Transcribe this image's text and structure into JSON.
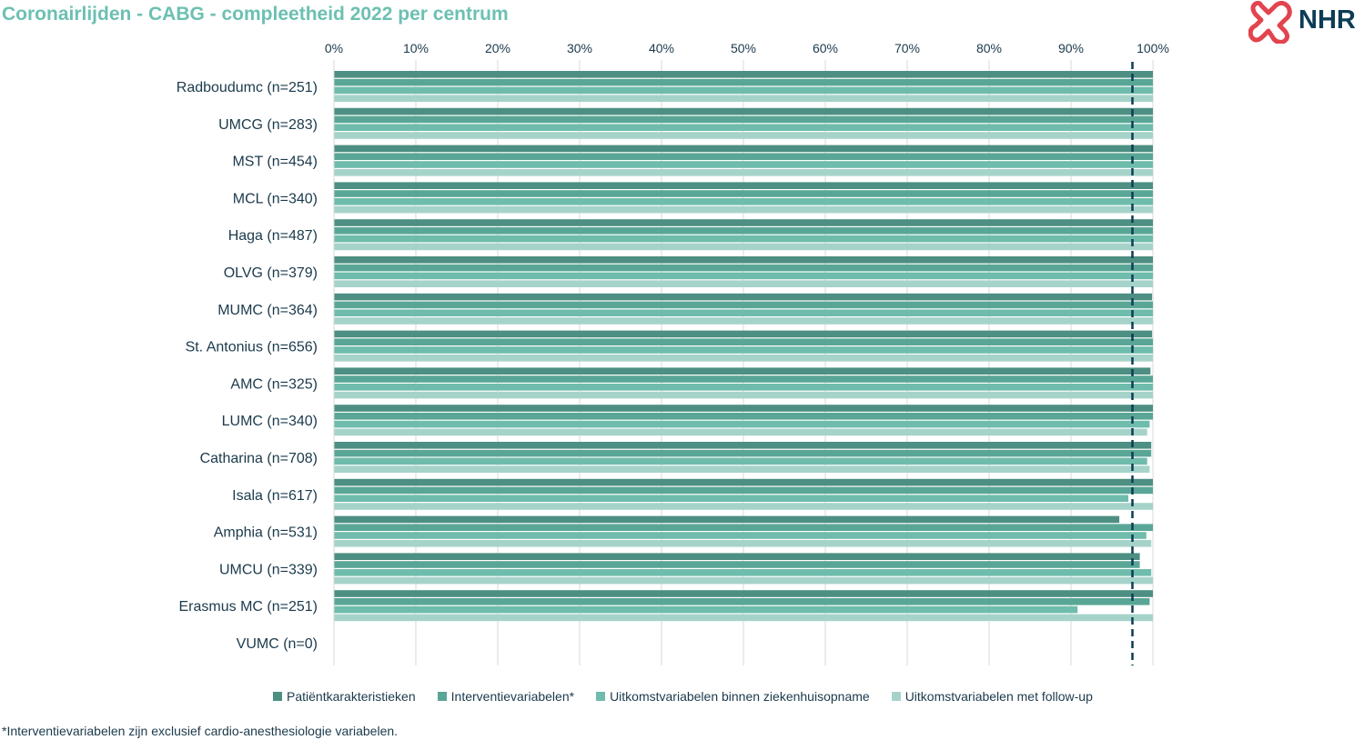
{
  "header": {
    "title": "Coronairlijden - CABG - compleetheid 2022 per centrum",
    "logo_text": "NHR"
  },
  "footnote": "*Interventievariabelen zijn exclusief cardio-anesthesiologie variabelen.",
  "colors": {
    "title": "#6cc0b2",
    "text": "#1b3a4b",
    "reference_line": "#0d3c55",
    "logo_red": "#e2444e",
    "logo_navy": "#0d3c55"
  },
  "chart_data": {
    "type": "bar",
    "orientation": "horizontal",
    "title": "Coronairlijden - CABG - compleetheid 2022 per centrum",
    "xlim": [
      0,
      100
    ],
    "x_ticks": [
      "0%",
      "10%",
      "20%",
      "30%",
      "40%",
      "50%",
      "60%",
      "70%",
      "80%",
      "90%",
      "100%"
    ],
    "grid": true,
    "legend_position": "bottom",
    "reference_line": {
      "value": 97.5,
      "style": "dashed"
    },
    "categories": [
      "Radboudumc (n=251)",
      "UMCG (n=283)",
      "MST (n=454)",
      "MCL (n=340)",
      "Haga (n=487)",
      "OLVG (n=379)",
      "MUMC (n=364)",
      "St. Antonius (n=656)",
      "AMC (n=325)",
      "LUMC (n=340)",
      "Catharina (n=708)",
      "Isala (n=617)",
      "Amphia (n=531)",
      "UMCU (n=339)",
      "Erasmus MC (n=251)",
      "VUMC (n=0)"
    ],
    "series": [
      {
        "name": "Patiëntkarakteristieken",
        "color": "#4d8f82",
        "values": [
          100,
          100,
          100,
          100,
          100,
          100,
          99.9,
          99.9,
          99.7,
          100,
          99.8,
          100,
          95.9,
          98.4,
          100,
          0
        ]
      },
      {
        "name": "Interventievariabelen*",
        "color": "#5aa696",
        "values": [
          100,
          100,
          100,
          100,
          100,
          100,
          100,
          100,
          100,
          100,
          99.8,
          100,
          100,
          98.4,
          99.6,
          0
        ]
      },
      {
        "name": "Uitkomstvariabelen binnen ziekenhuisopname",
        "color": "#6fbcac",
        "values": [
          100,
          100,
          100,
          100,
          100,
          100,
          100,
          100,
          100,
          99.6,
          99.3,
          97,
          99.2,
          99.8,
          90.8,
          0
        ]
      },
      {
        "name": "Uitkomstvariabelen met follow-up",
        "color": "#a6d3c9",
        "values": [
          100,
          100,
          100,
          100,
          100,
          100,
          100,
          100,
          100,
          99.3,
          99.6,
          100,
          99.8,
          100,
          100,
          0
        ]
      }
    ]
  }
}
